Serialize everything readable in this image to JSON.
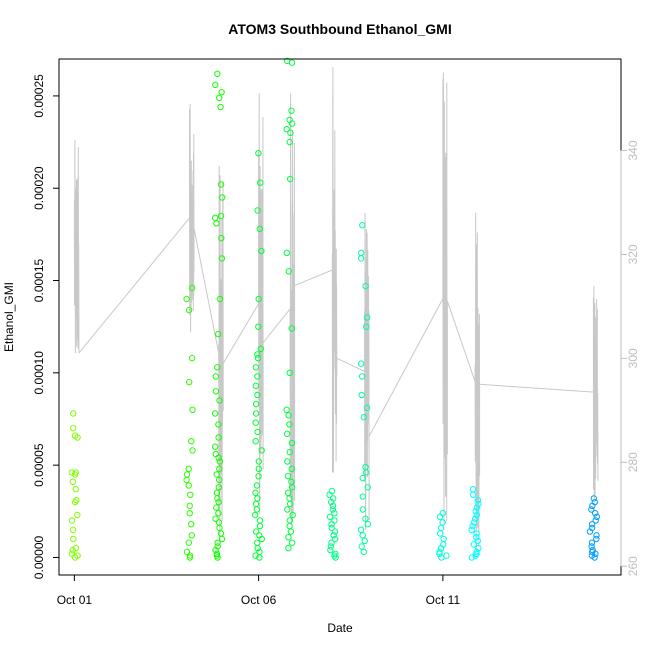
{
  "chart_data": {
    "type": "scatter",
    "title": "ATOM3 Southbound Ethanol_GMI",
    "xlabel": "Date",
    "ylabel": "Ethanol_GMI",
    "x_ticks": [
      "Oct 01",
      "Oct 06",
      "Oct 11"
    ],
    "y_ticks": [
      "0.00000",
      "0.00005",
      "0.00010",
      "0.00015",
      "0.00020",
      "0.00025"
    ],
    "y2_ticks": [
      "260",
      "280",
      "300",
      "320",
      "340"
    ],
    "xlim": [
      "2017-09-30T14:00",
      "2017-10-15T20:00"
    ],
    "ylim": [
      -9.5e-06,
      0.00027
    ],
    "y2lim": [
      258.3,
      357.6
    ],
    "legend": "none",
    "grid": false,
    "colors": {
      "line": "#c8c8c8",
      "early": "#80ff00",
      "mid": "#00ff40",
      "late": "#00ffff",
      "end": "#0099ff"
    },
    "series": [
      {
        "type": "scatter",
        "color_by": "time",
        "clusters": [
          {
            "date": "2017-10-01T00:00",
            "color": "#80ff00",
            "values": [
              2e-06,
              5e-06,
              0.0,
              1e-06,
              4e-06,
              1e-05,
              1.5e-05,
              2e-05,
              2.3e-05,
              3e-05,
              3.1e-05,
              3.7e-05,
              4.1e-05,
              4.5e-05,
              4.6e-05,
              4.6e-05,
              6.5e-05,
              6.6e-05,
              7e-05,
              7.8e-05
            ]
          },
          {
            "date": "2017-10-04T03:00",
            "color": "#2bff00",
            "values": [
              0.0,
              1e-06,
              3e-06,
              8e-06,
              1.2e-05,
              1.8e-05,
              2.4e-05,
              2.8e-05,
              3.4e-05,
              3.9e-05,
              4.2e-05,
              4.5e-05,
              4.8e-05,
              5.8e-05,
              6.3e-05,
              8e-05,
              9.5e-05,
              0.000108,
              0.000134,
              0.00014,
              0.000146
            ]
          },
          {
            "date": "2017-10-04T22:00",
            "color": "#15ff00",
            "values": [
              0.0,
              1e-06,
              2e-06,
              4e-06,
              6e-06,
              8e-06,
              1e-05,
              1.3e-05,
              1.6e-05,
              1.9e-05,
              2.1e-05,
              2.4e-05,
              2.7e-05,
              3e-05,
              3.2e-05,
              3.5e-05,
              3.8e-05,
              4.2e-05,
              4.5e-05,
              4.8e-05,
              5.2e-05,
              5.4e-05,
              5.6e-05,
              6e-05,
              6.5e-05,
              7.2e-05,
              7.8e-05,
              8.5e-05,
              9e-05,
              9.8e-05,
              0.000103,
              0.000121,
              0.00014,
              0.000162,
              0.000173,
              0.000181,
              0.000184,
              0.000185,
              0.000195,
              0.000202,
              0.000244,
              0.000249,
              0.000252,
              0.000256,
              0.000262
            ]
          },
          {
            "date": "2017-10-06T00:00",
            "color": "#00ff33",
            "values": [
              0.0,
              1e-06,
              3e-06,
              5e-06,
              8e-06,
              1e-05,
              1.2e-05,
              1.4e-05,
              1.7e-05,
              2e-05,
              2.3e-05,
              2.6e-05,
              2.9e-05,
              3.2e-05,
              3.5e-05,
              3.9e-05,
              4.4e-05,
              4.8e-05,
              5.2e-05,
              5.8e-05,
              6.3e-05,
              6.8e-05,
              7.3e-05,
              7.8e-05,
              8.3e-05,
              8.8e-05,
              9.3e-05,
              9.8e-05,
              0.000103,
              0.000108,
              0.00011,
              0.000113,
              0.000125,
              0.00014,
              0.000166,
              0.000178,
              0.000188,
              0.000203,
              0.000219
            ]
          },
          {
            "date": "2017-10-06T20:30",
            "color": "#00ff40",
            "values": [
              5e-06,
              8e-06,
              1.1e-05,
              1.4e-05,
              1.7e-05,
              2e-05,
              2.3e-05,
              2.6e-05,
              2.9e-05,
              3.2e-05,
              3.5e-05,
              3.8e-05,
              4.1e-05,
              4.4e-05,
              4.8e-05,
              5.2e-05,
              5.7e-05,
              6.2e-05,
              6.7e-05,
              7.2e-05,
              7.7e-05,
              8e-05,
              0.0001,
              0.000124,
              0.000155,
              0.000165,
              0.000205,
              0.000225,
              0.00023,
              0.000232,
              0.000235,
              0.000237,
              0.000242,
              0.000268,
              0.000269
            ]
          },
          {
            "date": "2017-10-08T00:00",
            "color": "#00ff80",
            "values": [
              0.0,
              1e-06,
              2e-06,
              4e-06,
              6e-06,
              8e-06,
              1e-05,
              1.2e-05,
              1.4e-05,
              1.6e-05,
              1.8e-05,
              2e-05,
              2.2e-05,
              2.4e-05,
              2.6e-05,
              2.8e-05,
              3e-05,
              3.2e-05,
              3.4e-05,
              3.6e-05
            ]
          },
          {
            "date": "2017-10-08T21:00",
            "color": "#00ff99",
            "values": [
              3e-06,
              6e-06,
              9e-06,
              1.2e-05,
              1.5e-05,
              1.8e-05,
              2.1e-05,
              2.6e-05,
              3.3e-05,
              3.8e-05,
              4.3e-05,
              4.6e-05,
              4.9e-05,
              7.6e-05,
              8.1e-05,
              8.8e-05,
              9.8e-05,
              0.000105,
              0.000125,
              0.00013,
              0.000147,
              0.000162,
              0.000165,
              0.00018
            ]
          },
          {
            "date": "2017-10-11T00:00",
            "color": "#00ffdd",
            "values": [
              0.0,
              1e-06,
              2e-06,
              3e-06,
              5e-06,
              7e-06,
              1e-05,
              1.3e-05,
              1.6e-05,
              1.9e-05,
              2.2e-05,
              2.4e-05
            ]
          },
          {
            "date": "2017-10-11T21:00",
            "color": "#00ffff",
            "values": [
              0.0,
              1e-06,
              2e-06,
              3e-06,
              5e-06,
              7e-06,
              9e-06,
              1.1e-05,
              1.3e-05,
              1.5e-05,
              1.7e-05,
              1.9e-05,
              2.1e-05,
              2.3e-05,
              2.5e-05,
              2.7e-05,
              2.9e-05,
              3.1e-05,
              3.4e-05,
              3.7e-05
            ]
          },
          {
            "date": "2017-10-15T02:00",
            "color": "#00a0ff",
            "values": [
              0.0,
              1e-06,
              2e-06,
              3e-06,
              4e-06,
              6e-06,
              8e-06,
              1e-05,
              1.2e-05,
              1.4e-05,
              1.6e-05,
              1.8e-05,
              2e-05,
              2.2e-05,
              2.4e-05,
              2.6e-05,
              2.8e-05,
              3e-05,
              3.2e-05
            ]
          }
        ]
      },
      {
        "type": "line",
        "axis": "right",
        "color": "#c8c8c8",
        "bursts": [
          {
            "date": "2017-10-01T00:00",
            "low": 301,
            "high": 342,
            "end": 301
          },
          {
            "date": "2017-10-04T03:00",
            "low": 305,
            "high": 349,
            "end": 325
          },
          {
            "date": "2017-10-04T22:00",
            "low": 265,
            "high": 337,
            "end": 299
          },
          {
            "date": "2017-10-06T00:00",
            "low": 270,
            "high": 351,
            "end": 303
          },
          {
            "date": "2017-10-06T20:30",
            "low": 268,
            "high": 351,
            "end": 314
          },
          {
            "date": "2017-10-08T00:00",
            "low": 278,
            "high": 356,
            "end": 300
          },
          {
            "date": "2017-10-08T21:00",
            "low": 267,
            "high": 328,
            "end": 285
          },
          {
            "date": "2017-10-11T00:00",
            "low": 268,
            "high": 355,
            "end": 311
          },
          {
            "date": "2017-10-11T21:00",
            "low": 263,
            "high": 328,
            "end": 295
          },
          {
            "date": "2017-10-15T02:00",
            "low": 273,
            "high": 314,
            "end": 286
          }
        ]
      }
    ]
  }
}
